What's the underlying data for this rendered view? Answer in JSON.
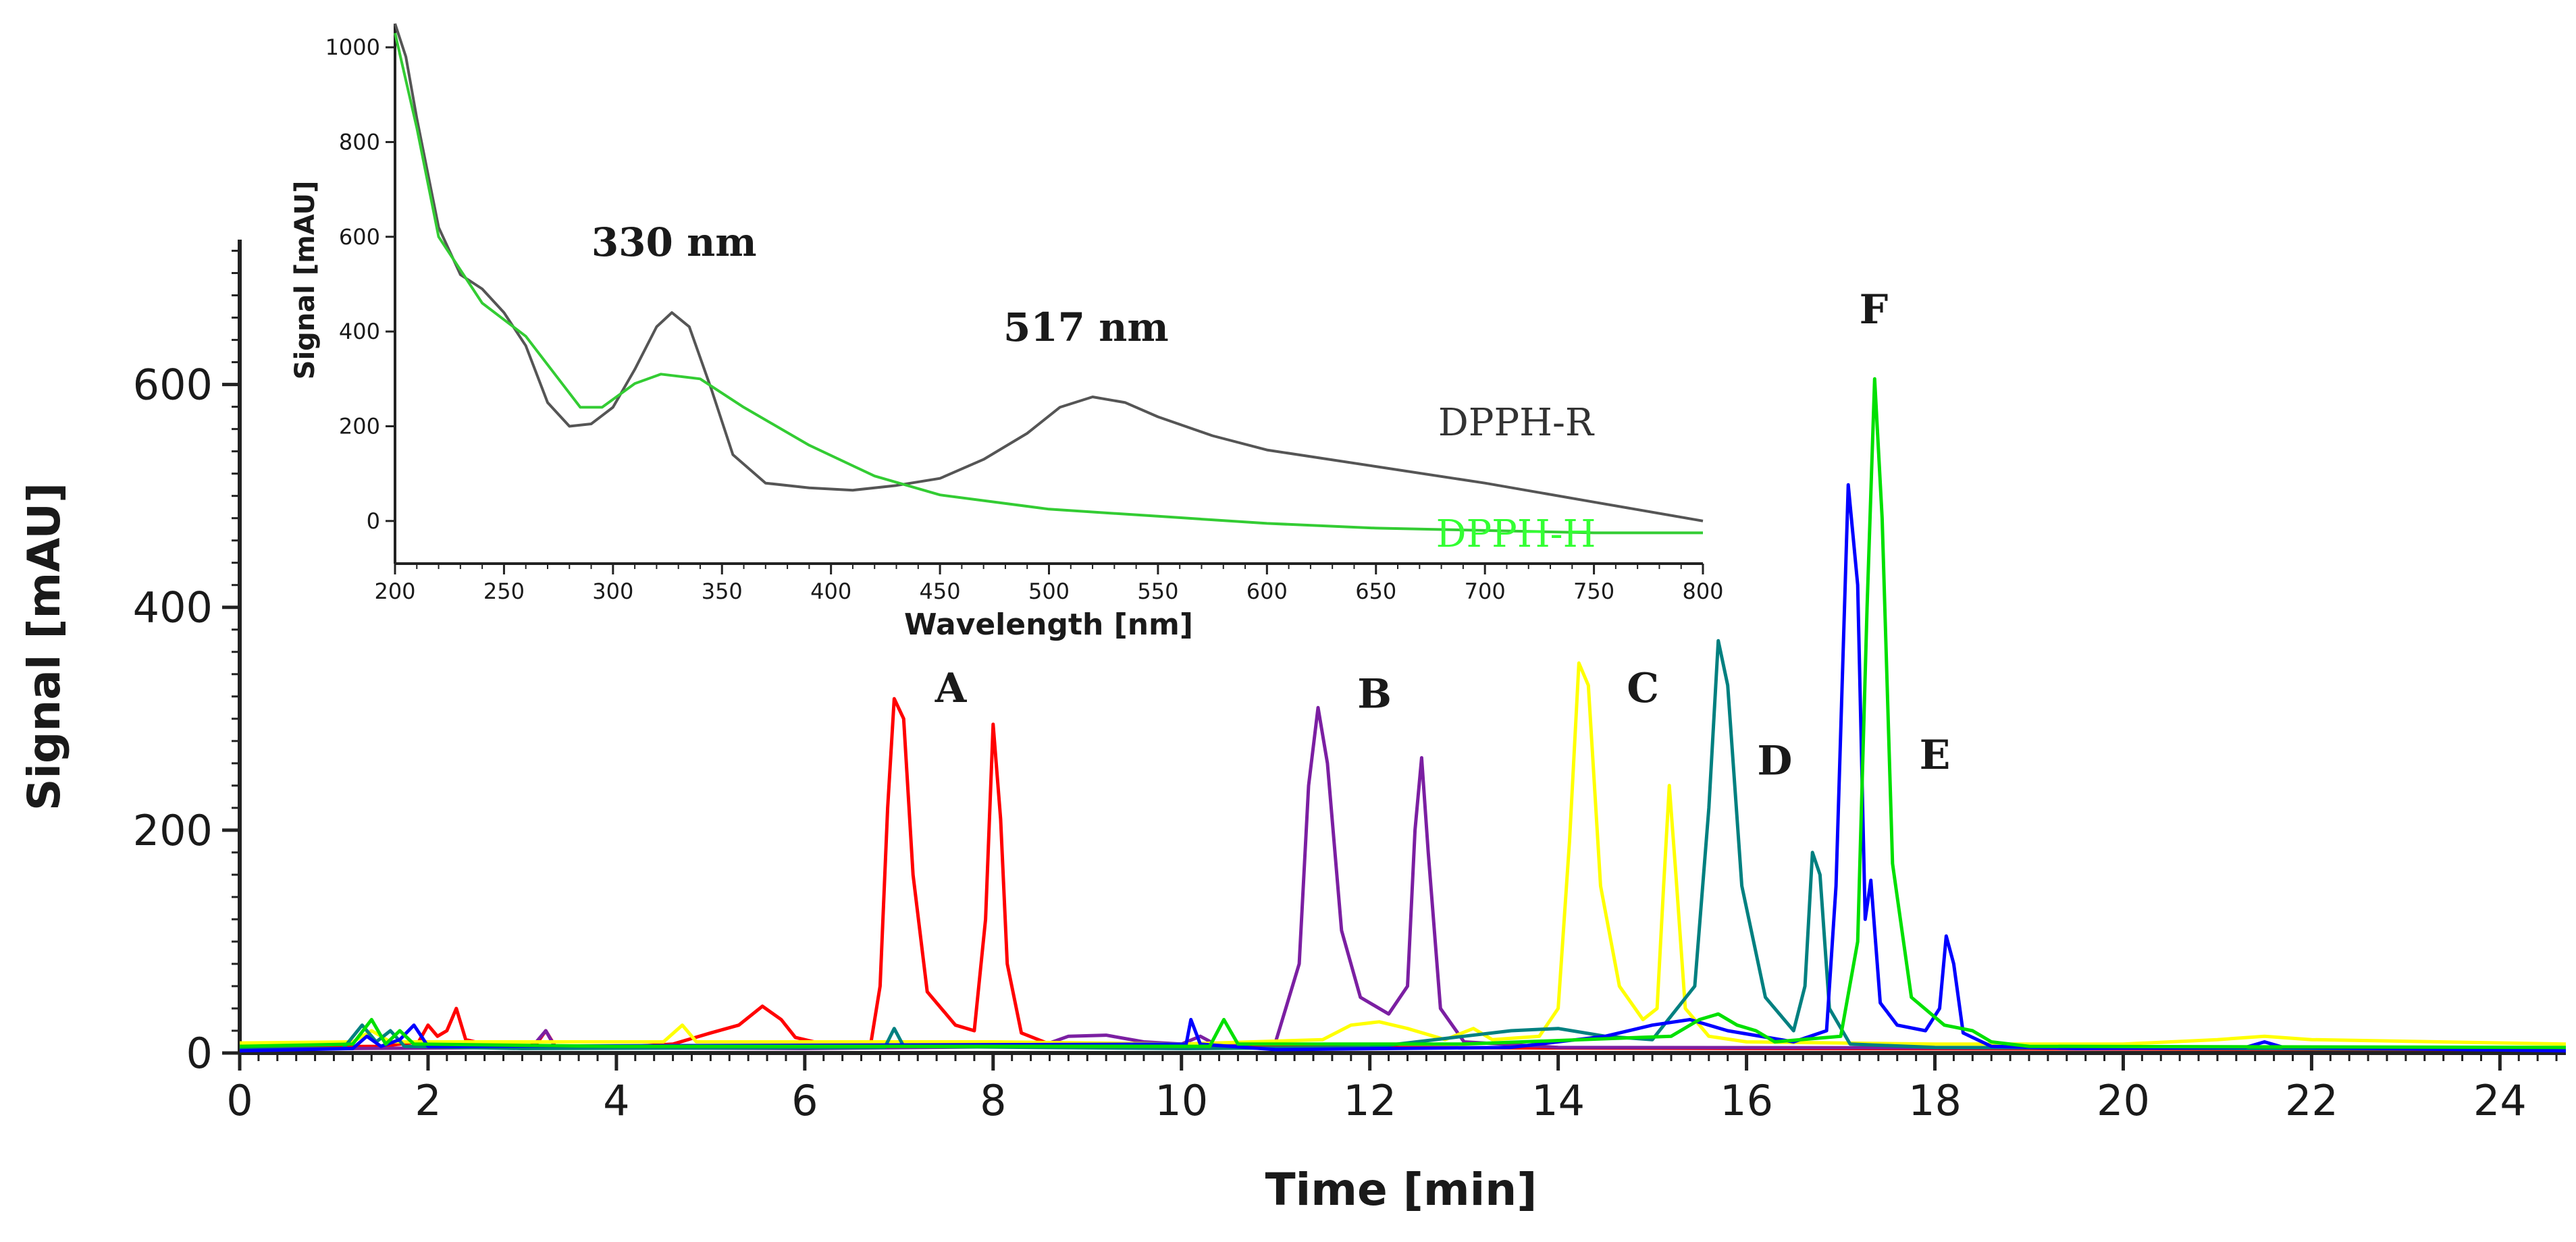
{
  "chart_data": [
    {
      "type": "line",
      "title": "",
      "xlabel": "Time [min]",
      "ylabel": "Signal [mAU]",
      "xlim": [
        0,
        24.7
      ],
      "ylim": [
        0,
        730
      ],
      "xticks": [
        0,
        2,
        4,
        6,
        8,
        10,
        12,
        14,
        16,
        18,
        20,
        22,
        24
      ],
      "yticks": [
        0,
        200,
        400,
        600
      ],
      "grid": false,
      "series": [
        {
          "name": "A",
          "color": "#ff0000",
          "points": [
            [
              0,
              5
            ],
            [
              1.5,
              6
            ],
            [
              1.9,
              10
            ],
            [
              2.0,
              25
            ],
            [
              2.1,
              15
            ],
            [
              2.2,
              20
            ],
            [
              2.3,
              40
            ],
            [
              2.4,
              12
            ],
            [
              2.6,
              8
            ],
            [
              3.0,
              5
            ],
            [
              3.15,
              8
            ],
            [
              3.25,
              20
            ],
            [
              3.35,
              6
            ],
            [
              4.0,
              5
            ],
            [
              4.6,
              8
            ],
            [
              5.0,
              18
            ],
            [
              5.3,
              25
            ],
            [
              5.55,
              42
            ],
            [
              5.75,
              30
            ],
            [
              5.9,
              14
            ],
            [
              6.2,
              8
            ],
            [
              6.7,
              8
            ],
            [
              6.8,
              60
            ],
            [
              6.88,
              220
            ],
            [
              6.95,
              318
            ],
            [
              7.05,
              300
            ],
            [
              7.15,
              160
            ],
            [
              7.3,
              55
            ],
            [
              7.6,
              25
            ],
            [
              7.8,
              20
            ],
            [
              7.92,
              120
            ],
            [
              8.0,
              295
            ],
            [
              8.08,
              210
            ],
            [
              8.15,
              80
            ],
            [
              8.3,
              18
            ],
            [
              8.6,
              8
            ],
            [
              9.5,
              6
            ],
            [
              12.0,
              5
            ],
            [
              16.0,
              4
            ],
            [
              24.7,
              3
            ]
          ]
        },
        {
          "name": "B",
          "color": "#7b1fa2",
          "points": [
            [
              0,
              4
            ],
            [
              1.0,
              4
            ],
            [
              3.1,
              5
            ],
            [
              3.25,
              20
            ],
            [
              3.35,
              5
            ],
            [
              6.0,
              4
            ],
            [
              8.5,
              6
            ],
            [
              8.8,
              15
            ],
            [
              9.2,
              16
            ],
            [
              9.6,
              10
            ],
            [
              10.0,
              8
            ],
            [
              10.2,
              15
            ],
            [
              10.4,
              6
            ],
            [
              11.0,
              10
            ],
            [
              11.25,
              80
            ],
            [
              11.35,
              240
            ],
            [
              11.45,
              310
            ],
            [
              11.55,
              260
            ],
            [
              11.7,
              110
            ],
            [
              11.9,
              50
            ],
            [
              12.2,
              35
            ],
            [
              12.4,
              60
            ],
            [
              12.48,
              200
            ],
            [
              12.55,
              265
            ],
            [
              12.62,
              180
            ],
            [
              12.75,
              40
            ],
            [
              13.0,
              10
            ],
            [
              14.0,
              5
            ],
            [
              24.7,
              4
            ]
          ]
        },
        {
          "name": "C",
          "color": "#ffff00",
          "points": [
            [
              0,
              9
            ],
            [
              1.2,
              10
            ],
            [
              1.4,
              20
            ],
            [
              1.6,
              10
            ],
            [
              4.5,
              10
            ],
            [
              4.7,
              25
            ],
            [
              4.85,
              10
            ],
            [
              8.0,
              10
            ],
            [
              10.0,
              8
            ],
            [
              11.5,
              12
            ],
            [
              11.8,
              25
            ],
            [
              12.1,
              28
            ],
            [
              12.4,
              22
            ],
            [
              12.8,
              12
            ],
            [
              13.1,
              22
            ],
            [
              13.3,
              12
            ],
            [
              13.8,
              15
            ],
            [
              14.0,
              40
            ],
            [
              14.12,
              190
            ],
            [
              14.22,
              350
            ],
            [
              14.32,
              330
            ],
            [
              14.45,
              150
            ],
            [
              14.65,
              60
            ],
            [
              14.9,
              30
            ],
            [
              15.05,
              40
            ],
            [
              15.12,
              150
            ],
            [
              15.18,
              240
            ],
            [
              15.25,
              160
            ],
            [
              15.35,
              40
            ],
            [
              15.6,
              15
            ],
            [
              16.0,
              10
            ],
            [
              18.0,
              8
            ],
            [
              20.0,
              8
            ],
            [
              21.0,
              12
            ],
            [
              21.5,
              15
            ],
            [
              22.0,
              12
            ],
            [
              24.7,
              8
            ]
          ]
        },
        {
          "name": "D",
          "color": "#008080",
          "points": [
            [
              0,
              3
            ],
            [
              1.1,
              4
            ],
            [
              1.3,
              25
            ],
            [
              1.45,
              10
            ],
            [
              1.6,
              20
            ],
            [
              1.75,
              6
            ],
            [
              3.0,
              4
            ],
            [
              6.85,
              5
            ],
            [
              6.95,
              22
            ],
            [
              7.05,
              6
            ],
            [
              10.0,
              4
            ],
            [
              12.0,
              5
            ],
            [
              13.0,
              15
            ],
            [
              13.5,
              20
            ],
            [
              14.0,
              22
            ],
            [
              14.5,
              15
            ],
            [
              15.0,
              12
            ],
            [
              15.45,
              60
            ],
            [
              15.6,
              220
            ],
            [
              15.7,
              370
            ],
            [
              15.8,
              330
            ],
            [
              15.95,
              150
            ],
            [
              16.2,
              50
            ],
            [
              16.5,
              20
            ],
            [
              16.62,
              60
            ],
            [
              16.7,
              180
            ],
            [
              16.78,
              160
            ],
            [
              16.88,
              40
            ],
            [
              17.1,
              8
            ],
            [
              18.0,
              5
            ],
            [
              24.7,
              3
            ]
          ]
        },
        {
          "name": "E",
          "color": "#0000ff",
          "points": [
            [
              0,
              2
            ],
            [
              1.2,
              4
            ],
            [
              1.35,
              15
            ],
            [
              1.5,
              6
            ],
            [
              1.7,
              12
            ],
            [
              1.85,
              25
            ],
            [
              2.0,
              6
            ],
            [
              10.05,
              8
            ],
            [
              10.1,
              30
            ],
            [
              10.2,
              8
            ],
            [
              11.0,
              3
            ],
            [
              13.5,
              5
            ],
            [
              14.5,
              15
            ],
            [
              15.0,
              25
            ],
            [
              15.4,
              30
            ],
            [
              15.8,
              20
            ],
            [
              16.5,
              10
            ],
            [
              16.85,
              20
            ],
            [
              16.95,
              150
            ],
            [
              17.08,
              510
            ],
            [
              17.18,
              420
            ],
            [
              17.26,
              120
            ],
            [
              17.32,
              155
            ],
            [
              17.42,
              45
            ],
            [
              17.6,
              25
            ],
            [
              17.9,
              20
            ],
            [
              18.05,
              40
            ],
            [
              18.12,
              105
            ],
            [
              18.2,
              80
            ],
            [
              18.3,
              18
            ],
            [
              18.6,
              6
            ],
            [
              19.5,
              4
            ],
            [
              21.3,
              5
            ],
            [
              21.5,
              10
            ],
            [
              21.7,
              5
            ],
            [
              24.7,
              2
            ]
          ]
        },
        {
          "name": "F",
          "color": "#00e000",
          "points": [
            [
              0,
              6
            ],
            [
              1.2,
              8
            ],
            [
              1.4,
              30
            ],
            [
              1.55,
              8
            ],
            [
              1.7,
              20
            ],
            [
              1.85,
              8
            ],
            [
              4.0,
              6
            ],
            [
              10.3,
              6
            ],
            [
              10.45,
              30
            ],
            [
              10.6,
              8
            ],
            [
              13.0,
              8
            ],
            [
              15.2,
              15
            ],
            [
              15.5,
              30
            ],
            [
              15.7,
              35
            ],
            [
              15.9,
              25
            ],
            [
              16.1,
              20
            ],
            [
              16.3,
              10
            ],
            [
              17.0,
              15
            ],
            [
              17.18,
              100
            ],
            [
              17.28,
              400
            ],
            [
              17.36,
              605
            ],
            [
              17.44,
              480
            ],
            [
              17.55,
              170
            ],
            [
              17.75,
              50
            ],
            [
              18.1,
              25
            ],
            [
              18.4,
              20
            ],
            [
              18.6,
              10
            ],
            [
              19.0,
              6
            ],
            [
              24.7,
              5
            ]
          ]
        }
      ],
      "peak_labels": [
        {
          "text": "A",
          "x": 7.55,
          "y": 315
        },
        {
          "text": "B",
          "x": 12.05,
          "y": 310
        },
        {
          "text": "C",
          "x": 14.9,
          "y": 315
        },
        {
          "text": "D",
          "x": 16.3,
          "y": 250
        },
        {
          "text": "E",
          "x": 18.0,
          "y": 255
        },
        {
          "text": "F",
          "x": 17.35,
          "y": 655
        }
      ]
    },
    {
      "type": "line",
      "title": "",
      "xlabel": "Wavelength [nm]",
      "ylabel": "Signal [mAU]",
      "xlim": [
        200,
        800
      ],
      "ylim": [
        -90,
        1050
      ],
      "xticks": [
        200,
        250,
        300,
        350,
        400,
        450,
        500,
        550,
        600,
        650,
        700,
        750,
        800
      ],
      "yticks": [
        0,
        200,
        400,
        600,
        800,
        1000
      ],
      "grid": false,
      "series": [
        {
          "name": "DPPH-R",
          "color": "#555555",
          "points": [
            [
              200,
              1050
            ],
            [
              205,
              980
            ],
            [
              210,
              850
            ],
            [
              220,
              620
            ],
            [
              230,
              520
            ],
            [
              240,
              490
            ],
            [
              250,
              440
            ],
            [
              260,
              370
            ],
            [
              270,
              250
            ],
            [
              280,
              200
            ],
            [
              290,
              205
            ],
            [
              300,
              240
            ],
            [
              310,
              320
            ],
            [
              320,
              410
            ],
            [
              327,
              440
            ],
            [
              335,
              410
            ],
            [
              345,
              280
            ],
            [
              355,
              140
            ],
            [
              370,
              80
            ],
            [
              390,
              70
            ],
            [
              410,
              65
            ],
            [
              430,
              75
            ],
            [
              450,
              90
            ],
            [
              470,
              130
            ],
            [
              490,
              185
            ],
            [
              505,
              240
            ],
            [
              520,
              262
            ],
            [
              535,
              250
            ],
            [
              550,
              220
            ],
            [
              575,
              180
            ],
            [
              600,
              150
            ],
            [
              650,
              115
            ],
            [
              700,
              80
            ],
            [
              750,
              40
            ],
            [
              800,
              0
            ]
          ]
        },
        {
          "name": "DPPH-H",
          "color": "#33cc33",
          "points": [
            [
              200,
              1030
            ],
            [
              210,
              830
            ],
            [
              220,
              600
            ],
            [
              240,
              460
            ],
            [
              260,
              390
            ],
            [
              275,
              300
            ],
            [
              285,
              240
            ],
            [
              295,
              240
            ],
            [
              310,
              290
            ],
            [
              322,
              310
            ],
            [
              340,
              300
            ],
            [
              360,
              240
            ],
            [
              390,
              160
            ],
            [
              420,
              95
            ],
            [
              450,
              55
            ],
            [
              500,
              25
            ],
            [
              550,
              10
            ],
            [
              600,
              -5
            ],
            [
              650,
              -15
            ],
            [
              700,
              -20
            ],
            [
              750,
              -25
            ],
            [
              800,
              -25
            ]
          ]
        }
      ],
      "annotations": [
        {
          "text": "330 nm",
          "x": 328,
          "y": 560
        },
        {
          "text": "517 nm",
          "x": 517,
          "y": 380
        }
      ],
      "legend": [
        {
          "text": "DPPH-R",
          "color": "#333333"
        },
        {
          "text": "DPPH-H",
          "color": "#33ff33"
        }
      ]
    }
  ]
}
